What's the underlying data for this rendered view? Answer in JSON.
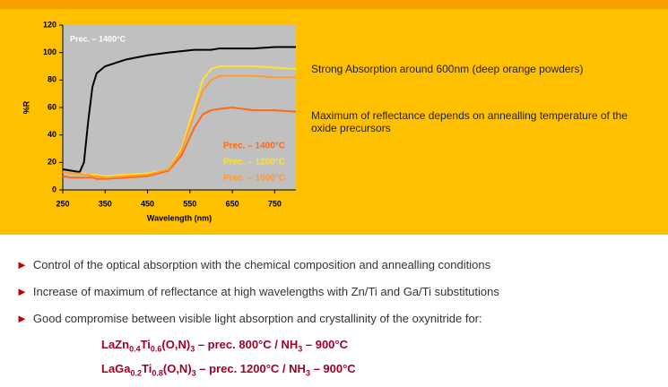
{
  "chart_data": {
    "type": "line",
    "x": [
      250,
      270,
      290,
      300,
      310,
      320,
      330,
      350,
      400,
      450,
      500,
      530,
      560,
      580,
      600,
      620,
      650,
      700,
      750,
      800
    ],
    "series": [
      {
        "name": "Prec. – 1400°C",
        "color": "#000000",
        "values": [
          15,
          14,
          13,
          20,
          50,
          75,
          85,
          90,
          95,
          98,
          100,
          101,
          102,
          102,
          102,
          103,
          103,
          103,
          104,
          104
        ]
      },
      {
        "name": "Prec. – 1400°C",
        "color": "#ff6a10",
        "values": [
          10,
          9,
          9,
          9,
          9,
          9,
          8,
          8,
          9,
          10,
          14,
          25,
          45,
          55,
          58,
          59,
          60,
          58,
          58,
          57
        ]
      },
      {
        "name": "Prec. – 1200°C",
        "color": "#ffe030",
        "values": [
          13,
          12,
          12,
          12,
          11,
          11,
          11,
          10,
          11,
          12,
          15,
          30,
          60,
          80,
          88,
          90,
          90,
          90,
          89,
          88
        ]
      },
      {
        "name": "Prec. – 1000°C",
        "color": "#ff9a30",
        "values": [
          13,
          12,
          12,
          11,
          11,
          10,
          10,
          9,
          10,
          11,
          15,
          28,
          55,
          72,
          80,
          83,
          83,
          83,
          82,
          82
        ]
      }
    ],
    "xlim": [
      250,
      800
    ],
    "xticks": [
      250,
      350,
      450,
      550,
      650,
      750
    ],
    "ylim": [
      0,
      120
    ],
    "yticks": [
      0,
      20,
      40,
      60,
      80,
      100,
      120
    ],
    "xlabel": "Wavelength (nm)",
    "ylabel": "%R"
  },
  "notes": [
    "Strong Absorption around 600nm (deep orange powders)",
    "Maximum of reflectance depends on annealling temperature of the oxide precursors"
  ],
  "bullets": [
    "Control of the optical absorption with the chemical composition and annealling conditions",
    "Increase of maximum of reflectance at high wavelengths with Zn/Ti and Ga/Ti substitutions",
    "Good compromise between visible light absorption and crystallinity of the oxynitride for:"
  ],
  "formulas": [
    [
      "LaZn",
      "0.4",
      "Ti",
      "0.6",
      "(O,N)",
      "3",
      " – prec. 800°C / NH",
      "3",
      " – 900°C"
    ],
    [
      "LaGa",
      "0.2",
      "Ti",
      "0.8",
      "(O,N)",
      "3",
      " – prec. 1200°C / NH",
      "3",
      " – 900°C"
    ]
  ]
}
